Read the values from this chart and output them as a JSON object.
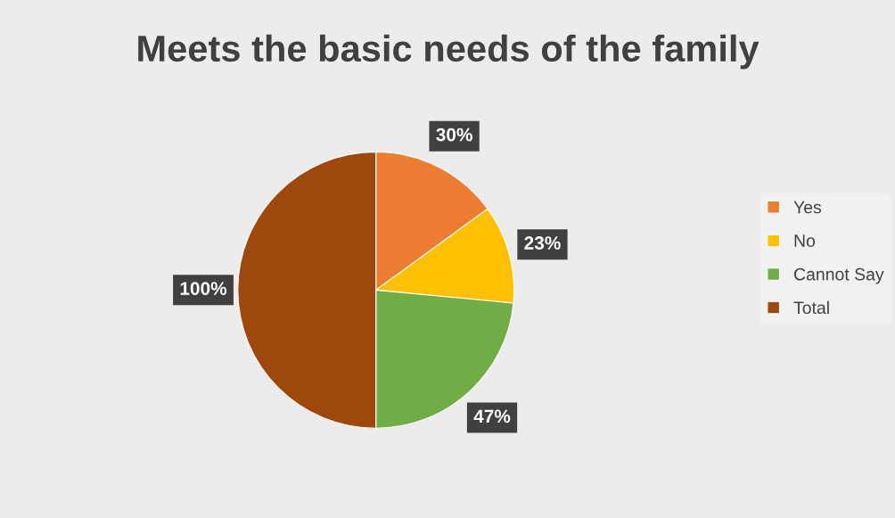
{
  "chart_data": {
    "type": "pie",
    "title": "Meets the basic needs of the family",
    "categories": [
      "Yes",
      "No",
      "Cannot Say",
      "Total"
    ],
    "values": [
      30,
      23,
      47,
      100
    ],
    "value_labels": [
      "30%",
      "23%",
      "47%",
      "100%"
    ],
    "colors": [
      "#ed7d31",
      "#ffc000",
      "#70ad47",
      "#9e480e"
    ],
    "legend": "right"
  }
}
